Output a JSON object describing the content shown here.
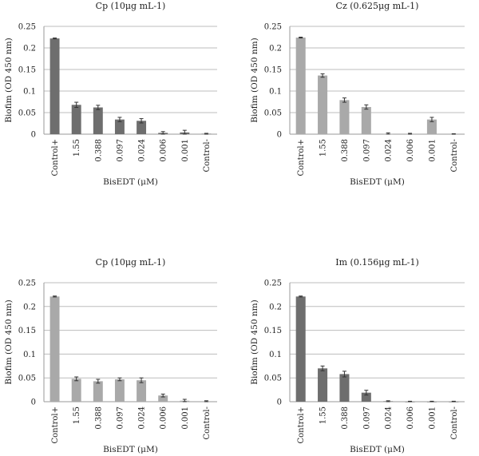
{
  "chart_data": [
    {
      "type": "bar",
      "title": "Cp (10μg mL-1)",
      "xlabel": "BisEDT (μM)",
      "ylabel": "Biofim (OD 450 nm)",
      "ylim": [
        0,
        0.25
      ],
      "yticks": [
        "0",
        "0.05",
        "0.1",
        "0.15",
        "0.2",
        "0.25"
      ],
      "grid": true,
      "bar_color": "#6e6e6e",
      "categories": [
        "Control+",
        "1.55",
        "0.388",
        "0.097",
        "0.024",
        "0.006",
        "0.001",
        "Control-"
      ],
      "values": [
        0.222,
        0.068,
        0.062,
        0.034,
        0.031,
        0.003,
        0.004,
        0.001
      ],
      "errors": [
        0.001,
        0.006,
        0.005,
        0.005,
        0.005,
        0.003,
        0.005,
        0.001
      ]
    },
    {
      "type": "bar",
      "title": "Cz (0.625μg mL-1)",
      "xlabel": "BisEDT (μM)",
      "ylabel": "Biofim (OD 450 nm)",
      "ylim": [
        0,
        0.25
      ],
      "yticks": [
        "0",
        "0.05",
        "0.1",
        "0.15",
        "0.2",
        "0.25"
      ],
      "grid": true,
      "bar_color": "#a9a9a9",
      "categories": [
        "Control+",
        "1.55",
        "0.388",
        "0.097",
        "0.024",
        "0.006",
        "0.001",
        "Control-"
      ],
      "values": [
        0.224,
        0.136,
        0.079,
        0.063,
        0.001,
        0.001,
        0.034,
        0.0
      ],
      "errors": [
        0.001,
        0.004,
        0.005,
        0.005,
        0.002,
        0.001,
        0.005,
        0.001
      ]
    },
    {
      "type": "bar",
      "title": "Cp (10μg mL-1)",
      "xlabel": "BisEDT (μM)",
      "ylabel": "Biofim (OD 450 nm)",
      "ylim": [
        0,
        0.25
      ],
      "yticks": [
        "0",
        "0.05",
        "0.1",
        "0.15",
        "0.2",
        "0.25"
      ],
      "grid": true,
      "bar_color": "#a9a9a9",
      "categories": [
        "Control+",
        "1.55",
        "0.388",
        "0.097",
        "0.024",
        "0.006",
        "0.001",
        "Control-"
      ],
      "values": [
        0.221,
        0.048,
        0.043,
        0.047,
        0.045,
        0.013,
        0.002,
        0.001
      ],
      "errors": [
        0.001,
        0.004,
        0.004,
        0.003,
        0.005,
        0.003,
        0.003,
        0.001
      ]
    },
    {
      "type": "bar",
      "title": "Im (0.156μg mL-1)",
      "xlabel": "BisEDT (μM)",
      "ylabel": "Biofim (OD 450 nm)",
      "ylim": [
        0,
        0.25
      ],
      "yticks": [
        "0",
        "0.05",
        "0.1",
        "0.15",
        "0.2",
        "0.25"
      ],
      "grid": true,
      "bar_color": "#6e6e6e",
      "categories": [
        "Control+",
        "1.55",
        "0.388",
        "0.097",
        "0.024",
        "0.006",
        "0.001",
        "Control-"
      ],
      "values": [
        0.221,
        0.07,
        0.058,
        0.019,
        0.001,
        0.0,
        0.0,
        0.0
      ],
      "errors": [
        0.001,
        0.005,
        0.006,
        0.005,
        0.001,
        0.001,
        0.001,
        0.001
      ]
    }
  ]
}
